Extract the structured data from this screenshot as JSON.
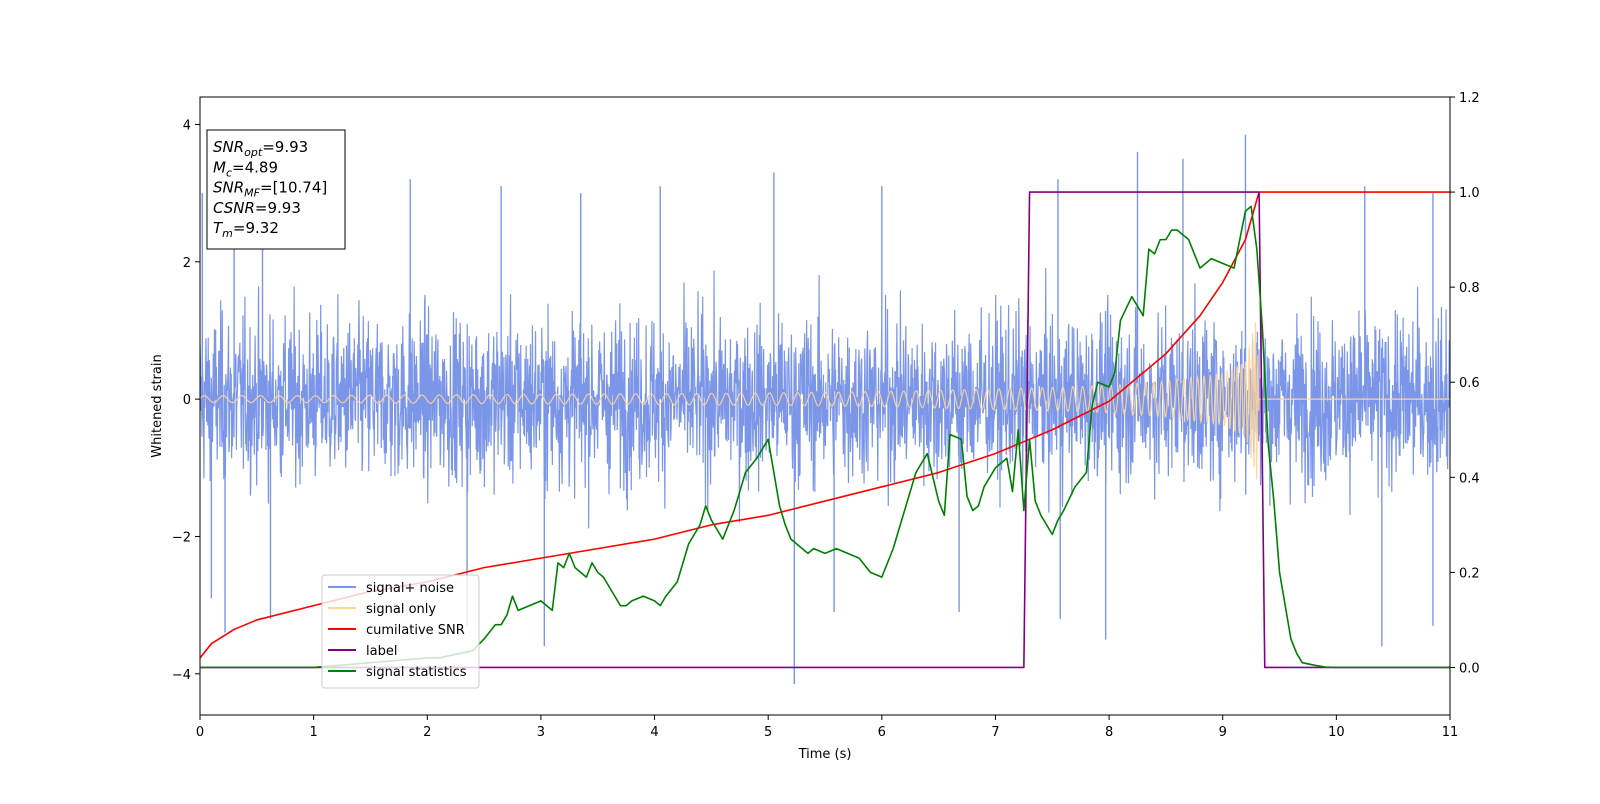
{
  "chart_data": {
    "type": "line",
    "title": "",
    "xlabel": "Time (s)",
    "ylabel": "Whitened strain",
    "ylabel_right": "",
    "xlim": [
      0,
      11
    ],
    "ylim": [
      -4.6,
      4.4
    ],
    "ylim_right": [
      -0.1,
      1.2
    ],
    "xticks": [
      0,
      1,
      2,
      3,
      4,
      5,
      6,
      7,
      8,
      9,
      10,
      11
    ],
    "yticks": [
      -4,
      -2,
      0,
      2,
      4
    ],
    "yticks_right": [
      0.0,
      0.2,
      0.4,
      0.6,
      0.8,
      1.0,
      1.2
    ],
    "grid": false,
    "legend": {
      "placement": "lower-left",
      "entries": [
        {
          "name": "signal+ noise",
          "color": "#7b96e8"
        },
        {
          "name": "signal only",
          "color": "#fdd49a"
        },
        {
          "name": "cumilative SNR",
          "color": "#ff0000"
        },
        {
          "name": "label",
          "color": "#800080"
        },
        {
          "name": "signal statistics",
          "color": "#008000"
        }
      ]
    },
    "annotation_box": {
      "placement": "top-left",
      "lines": [
        {
          "name": "SNR",
          "sub": "opt",
          "value": "=9.93"
        },
        {
          "name": "M",
          "sub": "c",
          "value": "=4.89"
        },
        {
          "name": "SNR",
          "sub": "MF",
          "value": "=[10.74]"
        },
        {
          "name": "CSNR",
          "sub": "",
          "value": "=9.93"
        },
        {
          "name": "T",
          "sub": "m",
          "value": "=9.32"
        }
      ]
    },
    "series": [
      {
        "name": "signal+ noise",
        "axis": "left",
        "color": "#7b96e8",
        "kind": "noise-band",
        "x_range": [
          0,
          11
        ],
        "typical_range": [
          -2.0,
          2.0
        ],
        "peaks_positive": [
          [
            0.02,
            3.0
          ],
          [
            0.3,
            3.1
          ],
          [
            0.55,
            3.0
          ],
          [
            1.85,
            3.2
          ],
          [
            2.65,
            3.1
          ],
          [
            3.35,
            3.0
          ],
          [
            4.05,
            3.1
          ],
          [
            5.05,
            3.3
          ],
          [
            6.0,
            3.1
          ],
          [
            7.55,
            3.2
          ],
          [
            8.25,
            3.6
          ],
          [
            8.65,
            3.5
          ],
          [
            9.2,
            3.85
          ],
          [
            10.25,
            3.1
          ],
          [
            10.85,
            3.0
          ]
        ],
        "peaks_negative": [
          [
            0.1,
            -2.9
          ],
          [
            0.22,
            -3.4
          ],
          [
            0.62,
            -3.2
          ],
          [
            2.35,
            -3.3
          ],
          [
            3.03,
            -3.6
          ],
          [
            5.23,
            -4.15
          ],
          [
            5.58,
            -3.1
          ],
          [
            6.68,
            -3.1
          ],
          [
            7.57,
            -3.2
          ],
          [
            7.97,
            -3.5
          ],
          [
            10.4,
            -3.6
          ],
          [
            10.85,
            -3.3
          ]
        ]
      },
      {
        "name": "signal only",
        "axis": "left",
        "color": "#fdd49a",
        "kind": "chirp",
        "x_range": [
          0,
          9.32
        ],
        "amplitude": [
          [
            0,
            0.05
          ],
          [
            1,
            0.05
          ],
          [
            2,
            0.06
          ],
          [
            3,
            0.07
          ],
          [
            4,
            0.08
          ],
          [
            5,
            0.09
          ],
          [
            6,
            0.11
          ],
          [
            7,
            0.15
          ],
          [
            7.5,
            0.17
          ],
          [
            8,
            0.2
          ],
          [
            8.5,
            0.26
          ],
          [
            9,
            0.38
          ],
          [
            9.2,
            0.55
          ],
          [
            9.3,
            1.2
          ],
          [
            9.32,
            0.0
          ]
        ],
        "after_merger_value": 0
      },
      {
        "name": "cumilative SNR",
        "axis": "right",
        "color": "#ff0000",
        "x": [
          0,
          0.1,
          0.3,
          0.5,
          1,
          1.5,
          2,
          2.5,
          3,
          3.5,
          4,
          4.5,
          5,
          5.5,
          6,
          6.5,
          7,
          7.5,
          8,
          8.5,
          8.8,
          9,
          9.2,
          9.32,
          11
        ],
        "values": [
          0.02,
          0.05,
          0.08,
          0.1,
          0.13,
          0.16,
          0.18,
          0.21,
          0.23,
          0.25,
          0.27,
          0.3,
          0.32,
          0.35,
          0.38,
          0.41,
          0.45,
          0.5,
          0.56,
          0.66,
          0.74,
          0.81,
          0.9,
          1.0,
          1.0
        ]
      },
      {
        "name": "label",
        "axis": "right",
        "color": "#800080",
        "x": [
          0,
          7.25,
          7.3,
          9.32,
          9.37,
          11
        ],
        "values": [
          0,
          0,
          1,
          1,
          0,
          0
        ]
      },
      {
        "name": "signal statistics",
        "axis": "right",
        "color": "#008000",
        "x": [
          0,
          1,
          1.5,
          2,
          2.1,
          2.2,
          2.3,
          2.4,
          2.5,
          2.6,
          2.65,
          2.7,
          2.75,
          2.8,
          2.9,
          3.0,
          3.1,
          3.15,
          3.2,
          3.25,
          3.3,
          3.4,
          3.45,
          3.5,
          3.55,
          3.6,
          3.7,
          3.75,
          3.8,
          3.9,
          4.0,
          4.05,
          4.1,
          4.2,
          4.3,
          4.4,
          4.45,
          4.5,
          4.55,
          4.6,
          4.7,
          4.8,
          4.9,
          5.0,
          5.05,
          5.1,
          5.15,
          5.2,
          5.3,
          5.35,
          5.4,
          5.5,
          5.6,
          5.7,
          5.8,
          5.9,
          6.0,
          6.1,
          6.2,
          6.3,
          6.4,
          6.5,
          6.55,
          6.6,
          6.7,
          6.75,
          6.8,
          6.85,
          6.9,
          7.0,
          7.1,
          7.15,
          7.2,
          7.25,
          7.3,
          7.35,
          7.4,
          7.5,
          7.55,
          7.6,
          7.7,
          7.8,
          7.85,
          7.9,
          8.0,
          8.05,
          8.1,
          8.2,
          8.3,
          8.35,
          8.4,
          8.45,
          8.5,
          8.55,
          8.6,
          8.7,
          8.8,
          8.85,
          8.9,
          9.0,
          9.1,
          9.2,
          9.25,
          9.3,
          9.35,
          9.4,
          9.45,
          9.5,
          9.55,
          9.6,
          9.65,
          9.7,
          9.8,
          9.9,
          10.0,
          10.5,
          11
        ],
        "values": [
          0,
          0,
          0.01,
          0.02,
          0.02,
          0.025,
          0.03,
          0.035,
          0.06,
          0.09,
          0.09,
          0.11,
          0.15,
          0.12,
          0.13,
          0.14,
          0.12,
          0.22,
          0.21,
          0.24,
          0.21,
          0.19,
          0.22,
          0.2,
          0.19,
          0.17,
          0.13,
          0.13,
          0.14,
          0.15,
          0.14,
          0.13,
          0.15,
          0.18,
          0.26,
          0.3,
          0.34,
          0.31,
          0.29,
          0.27,
          0.33,
          0.41,
          0.44,
          0.48,
          0.41,
          0.34,
          0.3,
          0.27,
          0.25,
          0.24,
          0.25,
          0.24,
          0.25,
          0.24,
          0.23,
          0.2,
          0.19,
          0.25,
          0.33,
          0.41,
          0.45,
          0.35,
          0.32,
          0.49,
          0.48,
          0.36,
          0.33,
          0.34,
          0.38,
          0.42,
          0.44,
          0.37,
          0.5,
          0.33,
          0.48,
          0.35,
          0.32,
          0.28,
          0.31,
          0.33,
          0.38,
          0.41,
          0.55,
          0.6,
          0.59,
          0.62,
          0.73,
          0.78,
          0.74,
          0.88,
          0.87,
          0.9,
          0.9,
          0.92,
          0.92,
          0.9,
          0.84,
          0.85,
          0.86,
          0.85,
          0.84,
          0.96,
          0.97,
          0.88,
          0.71,
          0.47,
          0.35,
          0.2,
          0.13,
          0.06,
          0.03,
          0.01,
          0.005,
          0.001,
          0,
          0,
          0
        ]
      }
    ]
  }
}
